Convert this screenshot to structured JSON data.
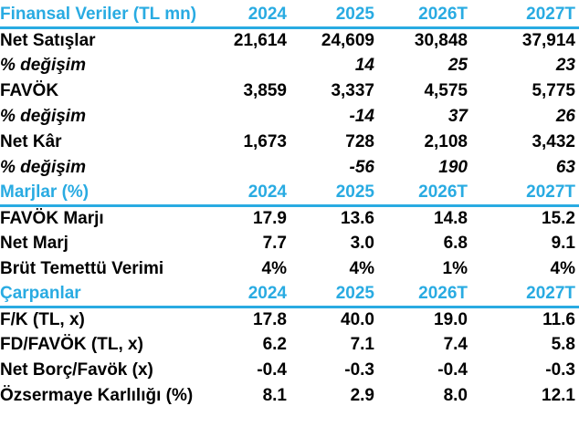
{
  "colors": {
    "accent": "#29ABE2",
    "text": "#000000",
    "background": "#FFFFFF"
  },
  "chart_data": {
    "type": "table",
    "title": "Finansal Veriler (TL mn)",
    "sections": [
      {
        "header": "Finansal Veriler (TL mn)",
        "columns": [
          "2024",
          "2025",
          "2026T",
          "2027T"
        ],
        "rows": [
          {
            "label": "Net Satışlar",
            "italic": false,
            "values": [
              "21,614",
              "24,609",
              "30,848",
              "37,914"
            ]
          },
          {
            "label": "% değişim",
            "italic": true,
            "values": [
              "",
              "14",
              "25",
              "23"
            ]
          },
          {
            "label": "FAVÖK",
            "italic": false,
            "values": [
              "3,859",
              "3,337",
              "4,575",
              "5,775"
            ]
          },
          {
            "label": "% değişim",
            "italic": true,
            "values": [
              "",
              "-14",
              "37",
              "26"
            ]
          },
          {
            "label": "Net Kâr",
            "italic": false,
            "values": [
              "1,673",
              "728",
              "2,108",
              "3,432"
            ]
          },
          {
            "label": "% değişim",
            "italic": true,
            "values": [
              "",
              "-56",
              "190",
              "63"
            ]
          }
        ]
      },
      {
        "header": "Marjlar (%)",
        "columns": [
          "2024",
          "2025",
          "2026T",
          "2027T"
        ],
        "rows": [
          {
            "label": "FAVÖK Marjı",
            "italic": false,
            "values": [
              "17.9",
              "13.6",
              "14.8",
              "15.2"
            ]
          },
          {
            "label": "Net Marj",
            "italic": false,
            "values": [
              "7.7",
              "3.0",
              "6.8",
              "9.1"
            ]
          },
          {
            "label": "Brüt Temettü Verimi",
            "italic": false,
            "values": [
              "4%",
              "4%",
              "1%",
              "4%"
            ]
          }
        ]
      },
      {
        "header": "Çarpanlar",
        "columns": [
          "2024",
          "2025",
          "2026T",
          "2027T"
        ],
        "rows": [
          {
            "label": "F/K (TL, x)",
            "italic": false,
            "values": [
              "17.8",
              "40.0",
              "19.0",
              "11.6"
            ]
          },
          {
            "label": "FD/FAVÖK (TL, x)",
            "italic": false,
            "values": [
              "6.2",
              "7.1",
              "7.4",
              "5.8"
            ]
          },
          {
            "label": "Net Borç/Favök (x)",
            "italic": false,
            "values": [
              "-0.4",
              "-0.3",
              "-0.4",
              "-0.3"
            ]
          },
          {
            "label": "Özsermaye Karlılığı (%)",
            "italic": false,
            "values": [
              "8.1",
              "2.9",
              "8.0",
              "12.1"
            ]
          }
        ]
      }
    ]
  }
}
